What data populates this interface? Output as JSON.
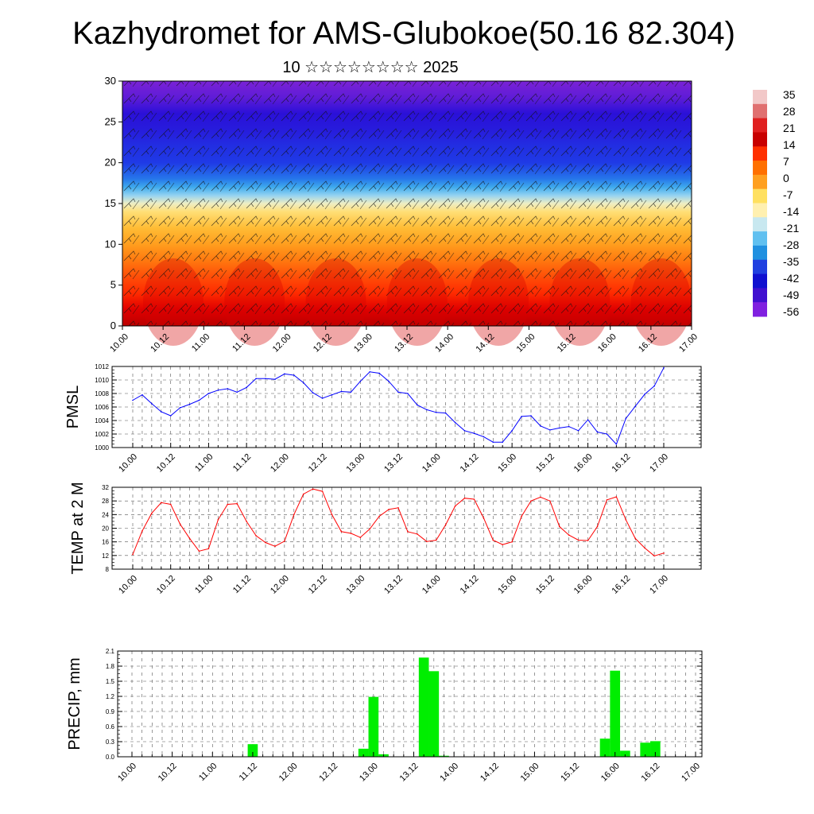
{
  "header": {
    "title": "Kazhydromet for AMS-Glubokoe(50.16 82.304)",
    "subtitle": "10 ☆☆☆☆☆☆☆☆ 2025"
  },
  "colorbar": {
    "labels": [
      "35",
      "28",
      "21",
      "14",
      "7",
      "0",
      "-7",
      "-14",
      "-21",
      "-28",
      "-35",
      "-42",
      "-49",
      "-56"
    ],
    "colors": [
      "#f2c8c8",
      "#e07070",
      "#e02020",
      "#c80000",
      "#ff3000",
      "#ff7000",
      "#ffa020",
      "#ffe060",
      "#fff0b0",
      "#c8e8f0",
      "#60c0f0",
      "#2090e0",
      "#2040e0",
      "#1010d0",
      "#4010d0",
      "#8020e0"
    ]
  },
  "chart_data": [
    {
      "type": "heatmap",
      "title": "",
      "ylim": [
        0,
        30
      ],
      "yticks": [
        0,
        5,
        10,
        15,
        20,
        25,
        30
      ],
      "xticks": [
        "10.00",
        "10.12",
        "11.00",
        "11.12",
        "12.00",
        "12.12",
        "13.00",
        "13.12",
        "14.00",
        "14.12",
        "15.00",
        "15.12",
        "16.00",
        "16.12",
        "17.00"
      ],
      "profile": {
        "height_km": [
          0,
          2,
          4,
          6,
          8,
          10,
          12,
          14,
          15,
          16,
          17,
          18,
          20,
          22,
          24,
          26,
          28,
          30
        ],
        "temperature_c": [
          30,
          26,
          20,
          14,
          7,
          0,
          -6,
          -12,
          -16,
          -22,
          -30,
          -36,
          -42,
          -46,
          -52,
          -56,
          -60,
          -62
        ]
      },
      "wind_barbs": true
    },
    {
      "type": "line",
      "ylabel": "PMSL",
      "ylim": [
        1000,
        1012
      ],
      "yticks": [
        1000,
        1002,
        1004,
        1006,
        1008,
        1010,
        1012
      ],
      "xticks": [
        "10.00",
        "10.12",
        "11.00",
        "11.12",
        "12.00",
        "12.12",
        "13.00",
        "13.12",
        "14.00",
        "14.12",
        "15.00",
        "15.12",
        "16.00",
        "16.12",
        "17.00"
      ],
      "color": "#0000ff",
      "x": [
        0,
        3,
        6,
        9,
        12,
        15,
        18,
        21,
        24,
        27,
        30,
        33,
        36,
        39,
        42,
        45,
        48,
        51,
        54,
        57,
        60,
        63,
        66,
        69,
        72,
        75,
        78,
        81,
        84,
        87,
        90,
        93,
        96,
        99,
        102,
        105,
        108,
        111,
        114,
        117,
        120,
        123,
        126,
        129,
        132,
        135,
        138,
        141,
        144,
        147,
        150,
        153,
        156,
        159,
        162,
        165,
        168
      ],
      "values": [
        1007.0,
        1007.8,
        1006.5,
        1005.3,
        1004.7,
        1005.9,
        1006.4,
        1007.0,
        1008.0,
        1008.5,
        1008.7,
        1008.2,
        1008.9,
        1010.2,
        1010.2,
        1010.1,
        1010.9,
        1010.7,
        1009.6,
        1008.1,
        1007.3,
        1007.8,
        1008.3,
        1008.2,
        1009.8,
        1011.2,
        1011.0,
        1009.8,
        1008.2,
        1008.0,
        1006.3,
        1005.6,
        1005.2,
        1005.1,
        1003.7,
        1002.5,
        1002.1,
        1001.6,
        1000.8,
        1000.8,
        1002.5,
        1004.6,
        1004.7,
        1003.2,
        1002.6,
        1002.9,
        1003.1,
        1002.5,
        1004.1,
        1002.3,
        1002.0,
        1000.5,
        1004.3,
        1006.1,
        1007.9,
        1009.1,
        1011.8
      ]
    },
    {
      "type": "line",
      "ylabel": "TEMP at 2 M",
      "ylim": [
        8,
        32
      ],
      "yticks": [
        8,
        12,
        16,
        20,
        24,
        28,
        32
      ],
      "xticks": [
        "10.00",
        "10.12",
        "11.00",
        "11.12",
        "12.00",
        "12.12",
        "13.00",
        "13.12",
        "14.00",
        "14.12",
        "15.00",
        "15.12",
        "16.00",
        "16.12",
        "17.00"
      ],
      "color": "#ff0000",
      "x": [
        0,
        3,
        6,
        9,
        12,
        15,
        18,
        21,
        24,
        27,
        30,
        33,
        36,
        39,
        42,
        45,
        48,
        51,
        54,
        57,
        60,
        63,
        66,
        69,
        72,
        75,
        78,
        81,
        84,
        87,
        90,
        93,
        96,
        99,
        102,
        105,
        108,
        111,
        114,
        117,
        120,
        123,
        126,
        129,
        132,
        135,
        138,
        141,
        144,
        147,
        150,
        153,
        156,
        159,
        162,
        165,
        168
      ],
      "values": [
        12.3,
        19.2,
        24.4,
        27.5,
        27.0,
        21.2,
        17.0,
        13.3,
        14.0,
        22.5,
        27.0,
        27.2,
        22.0,
        17.8,
        15.8,
        14.7,
        16.2,
        24.0,
        30.0,
        31.5,
        30.8,
        24.0,
        19.0,
        18.5,
        17.3,
        19.8,
        23.5,
        25.5,
        26.0,
        19.0,
        18.3,
        16.1,
        16.5,
        21.0,
        26.5,
        28.8,
        28.5,
        23.0,
        16.5,
        15.2,
        16.0,
        23.5,
        28.0,
        29.1,
        28.0,
        20.5,
        18.0,
        16.5,
        16.4,
        20.5,
        28.3,
        29.2,
        22.5,
        17.0,
        14.2,
        11.9,
        12.7
      ]
    },
    {
      "type": "bar",
      "ylabel": "PRECIP, mm",
      "ylim": [
        0,
        2.1
      ],
      "yticks": [
        0.0,
        0.3,
        0.6,
        0.9,
        1.2,
        1.5,
        1.8,
        2.1
      ],
      "xticks": [
        "10.00",
        "10.12",
        "11.00",
        "11.12",
        "12.00",
        "12.12",
        "13.00",
        "13.12",
        "14.00",
        "14.12",
        "15.00",
        "15.12",
        "16.00",
        "16.12",
        "17.00"
      ],
      "color": "#00ee00",
      "x": [
        36,
        69,
        72,
        75,
        87,
        90,
        93,
        141,
        144,
        147,
        153,
        156
      ],
      "values": [
        0.25,
        0.16,
        1.19,
        0.05,
        1.97,
        1.7,
        0.02,
        0.36,
        1.71,
        0.12,
        0.28,
        0.31
      ]
    }
  ]
}
